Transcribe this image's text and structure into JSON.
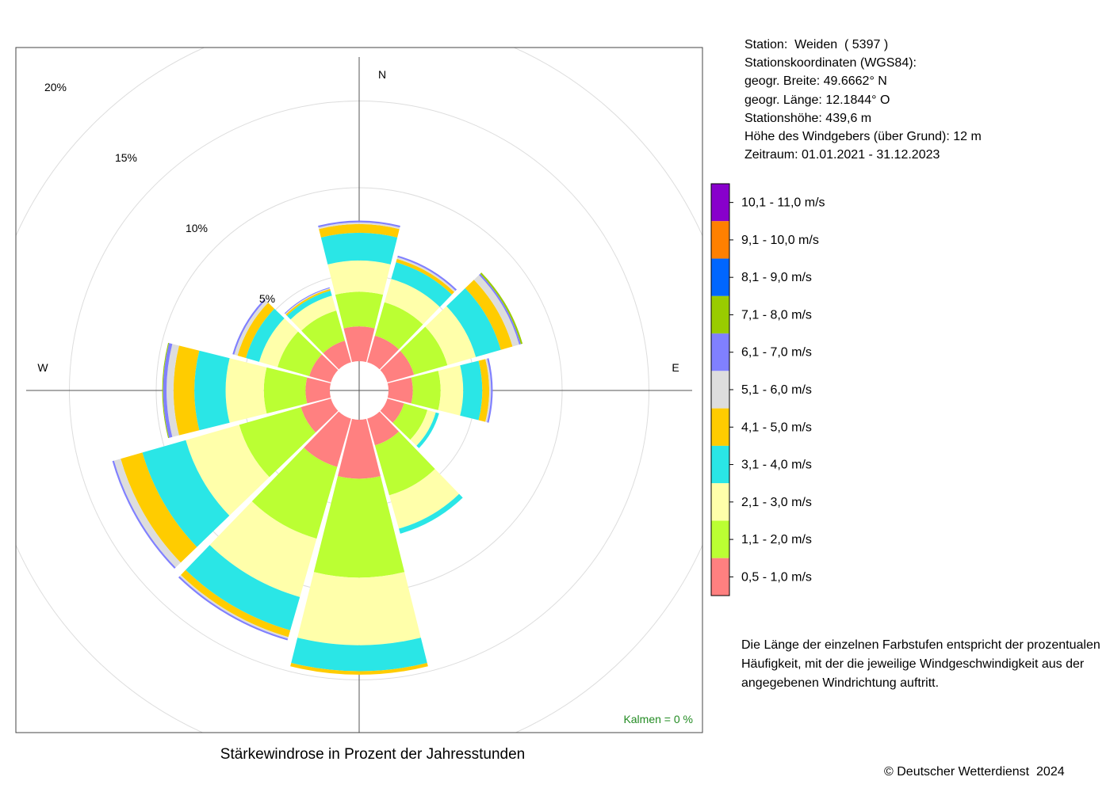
{
  "station": {
    "line_station": "Station:  Weiden  ( 5397 )",
    "line_coords_title": "Stationskoordinaten (WGS84):",
    "line_lat": "geogr. Breite: 49.6662° N",
    "line_lon": "geogr. Länge: 12.1844° O",
    "line_height": "Stationshöhe: 439,6 m",
    "line_sensor": "Höhe des Windgebers (über Grund): 12 m",
    "line_period": "Zeitraum: 01.01.2021 - 31.12.2023"
  },
  "note": "Die Länge der einzelnen Farbstufen entspricht der prozentualen Häufigkeit, mit der die jeweilige Windgeschwindigkeit aus der angegebenen Windrichtung auftritt.",
  "copyright": "© Deutscher Wetterdienst  2024",
  "chart_data": {
    "type": "wind-rose",
    "title": "Stärkewindrose in Prozent der Jahresstunden",
    "calm_label": "Kalmen  =  0 %",
    "directions": [
      "N",
      "E",
      "W"
    ],
    "rings": [
      5,
      10,
      15,
      20
    ],
    "ring_labels": [
      "5%",
      "10%",
      "15%",
      "20%"
    ],
    "r_max": 20,
    "grid": true,
    "legend_position": "right",
    "bins": [
      {
        "label": "0,5 - 1,0 m/s",
        "color": "#FF8080"
      },
      {
        "label": "1,1 - 2,0 m/s",
        "color": "#BBFF33"
      },
      {
        "label": "2,1 - 3,0 m/s",
        "color": "#FFFFAA"
      },
      {
        "label": "3,1 - 4,0 m/s",
        "color": "#2AE6E6"
      },
      {
        "label": "4,1 - 5,0 m/s",
        "color": "#FFCC00"
      },
      {
        "label": "5,1 - 6,0 m/s",
        "color": "#DDDDDD"
      },
      {
        "label": "6,1 - 7,0 m/s",
        "color": "#8080FF"
      },
      {
        "label": "7,1 - 8,0 m/s",
        "color": "#99CC00"
      },
      {
        "label": "8,1 - 9,0 m/s",
        "color": "#0066FF"
      },
      {
        "label": "9,1 - 10,0 m/s",
        "color": "#FF8000"
      },
      {
        "label": "10,1 - 11,0 m/s",
        "color": "#8800CC"
      }
    ],
    "sectors": [
      {
        "angle": 0,
        "values": [
          2.0,
          2.0,
          1.8,
          1.6,
          0.5,
          0.1,
          0.1,
          0,
          0,
          0,
          0
        ]
      },
      {
        "angle": 30,
        "values": [
          1.6,
          2.0,
          1.4,
          1.0,
          0.2,
          0.1,
          0.1,
          0,
          0,
          0,
          0
        ]
      },
      {
        "angle": 60,
        "values": [
          1.6,
          2.0,
          1.7,
          1.5,
          0.7,
          0.4,
          0.1,
          0.1,
          0,
          0,
          0
        ]
      },
      {
        "angle": 90,
        "values": [
          1.4,
          1.6,
          1.3,
          1.1,
          0.4,
          0.1,
          0.1,
          0,
          0,
          0,
          0
        ]
      },
      {
        "angle": 120,
        "values": [
          1.0,
          1.4,
          0.5,
          0.2,
          0,
          0,
          0,
          0,
          0,
          0,
          0
        ]
      },
      {
        "angle": 150,
        "values": [
          1.6,
          3.0,
          2.0,
          0.3,
          0,
          0,
          0,
          0,
          0,
          0,
          0
        ]
      },
      {
        "angle": 180,
        "values": [
          3.4,
          5.7,
          3.9,
          1.5,
          0.2,
          0,
          0,
          0,
          0,
          0,
          0
        ]
      },
      {
        "angle": 210,
        "values": [
          2.9,
          4.3,
          3.5,
          2.0,
          0.4,
          0.1,
          0.1,
          0,
          0,
          0,
          0
        ]
      },
      {
        "angle": 240,
        "values": [
          1.8,
          3.7,
          3.2,
          2.6,
          1.3,
          0.4,
          0.1,
          0,
          0,
          0,
          0
        ]
      },
      {
        "angle": 270,
        "values": [
          1.4,
          2.4,
          2.2,
          1.8,
          1.2,
          0.4,
          0.2,
          0.05,
          0,
          0,
          0
        ]
      },
      {
        "angle": 300,
        "values": [
          1.3,
          1.9,
          1.1,
          0.8,
          0.5,
          0.2,
          0.1,
          0,
          0,
          0,
          0
        ]
      },
      {
        "angle": 330,
        "values": [
          1.3,
          1.8,
          0.9,
          0.3,
          0.1,
          0.05,
          0.05,
          0,
          0,
          0,
          0
        ]
      }
    ]
  }
}
